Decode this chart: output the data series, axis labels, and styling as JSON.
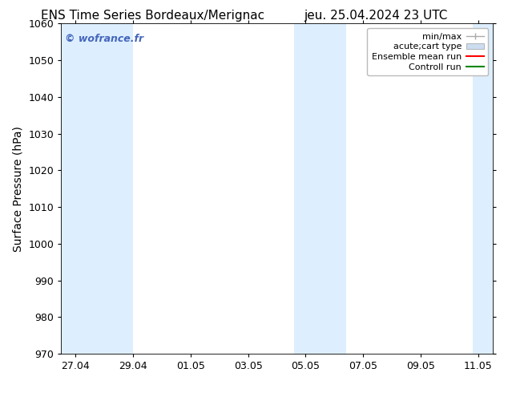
{
  "title_left": "ENS Time Series Bordeaux/Merignac",
  "title_right": "jeu. 25.04.2024 23 UTC",
  "ylabel": "Surface Pressure (hPa)",
  "ylim": [
    970,
    1060
  ],
  "yticks": [
    970,
    980,
    990,
    1000,
    1010,
    1020,
    1030,
    1040,
    1050,
    1060
  ],
  "xtick_labels": [
    "27.04",
    "29.04",
    "01.05",
    "03.05",
    "05.05",
    "07.05",
    "09.05",
    "11.05"
  ],
  "xtick_positions": [
    0,
    2,
    4,
    6,
    8,
    10,
    12,
    14
  ],
  "xlim": [
    -0.5,
    14.5
  ],
  "shaded_bands": [
    {
      "x_start": -0.5,
      "x_end": 2.0
    },
    {
      "x_start": 7.6,
      "x_end": 9.4
    },
    {
      "x_start": 13.8,
      "x_end": 14.5
    }
  ],
  "band_color": "#ddeeff",
  "background_color": "#ffffff",
  "watermark_text": "© wofrance.fr",
  "watermark_color": "#4466bb",
  "legend_entries": [
    {
      "label": "min/max",
      "color": "#aaaaaa",
      "type": "errbar"
    },
    {
      "label": "acute;cart type",
      "color": "#ccddf0",
      "type": "box"
    },
    {
      "label": "Ensemble mean run",
      "color": "#ff0000",
      "type": "line"
    },
    {
      "label": "Controll run",
      "color": "#008800",
      "type": "line"
    }
  ],
  "title_fontsize": 11,
  "tick_fontsize": 9,
  "ylabel_fontsize": 10,
  "legend_fontsize": 8,
  "watermark_fontsize": 9
}
